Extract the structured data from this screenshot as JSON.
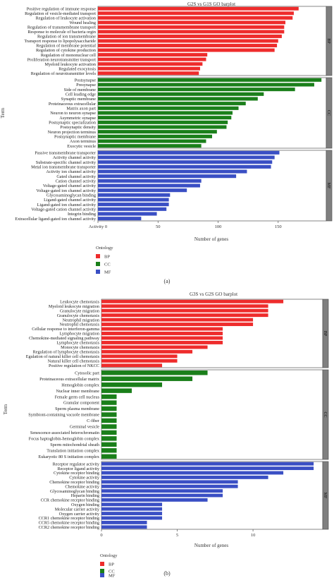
{
  "figure": {
    "panel_a_label": "(a)",
    "panel_b_label": "(b)"
  },
  "colors": {
    "BP": "#ee2c2c",
    "CC": "#1a7f1a",
    "MF": "#3a4fc4",
    "strip": "#7f7f7f"
  },
  "chart_data": [
    {
      "type": "bar",
      "orientation": "horizontal",
      "title": "G2S vs G1S GO barplot",
      "xlabel": "Number of genes",
      "ylabel": "Term",
      "xlim": [
        0,
        190
      ],
      "xticks": [
        0,
        50,
        100,
        150
      ],
      "xtick_labels": [
        "Activity 0",
        "50",
        "100",
        "150"
      ],
      "legend": {
        "title": "Ontology",
        "entries": [
          "BP",
          "CC",
          "MF"
        ],
        "position": "bottom-left"
      },
      "groups": [
        {
          "name": "BP",
          "strip_label": "BP",
          "color": "#ee2c2c",
          "categories": [
            "Positive regulation of immune response",
            "Regulation of vesicle-mediated transport",
            "Regulation of leukocyte activation",
            "Wound healing",
            "Regulation of transmembrane transport",
            "Response to molecule of bacteria orgin",
            "Regulation of ion transmembrane",
            "Transport response to lipopolysaccharide",
            "Regulation of membrane potential",
            "Regulation of cytokine production",
            "Regulation of mononuclear cell",
            "Proliferation neurotransmitter transport",
            "Myeloid leukocyte activation",
            "Regulated exocytosis",
            "Regulation of neurotransmitter levels"
          ],
          "values": [
            167,
            163,
            162,
            156,
            155,
            155,
            153,
            150,
            149,
            147,
            91,
            90,
            87,
            85,
            84
          ]
        },
        {
          "name": "CC",
          "strip_label": "CC",
          "color": "#1a7f1a",
          "categories": [
            "Postsynapse",
            "Presynapse",
            "Side of membrane",
            "Cell leading edge",
            "Synaptic membrane",
            "Proteinaceous extracellular",
            "Matrix axon part",
            "Neuron to neuron synapse",
            "Asymmetric synapse",
            "Postsynaptic specialization",
            "Postsynaptic density",
            "Neuron projection terminus",
            "Postsynaptic membrane",
            "Axon terminus",
            "Exocytic vesicle"
          ],
          "values": [
            186,
            180,
            164,
            138,
            133,
            123,
            117,
            112,
            111,
            108,
            107,
            99,
            95,
            90,
            86
          ]
        },
        {
          "name": "MF",
          "strip_label": "MF",
          "color": "#3a4fc4",
          "categories": [
            "Passive transmembrane transporter",
            "Activity channel activity",
            "Substrate-specific channel activity",
            "Metal ion transmembrane transporter",
            "Activity ion channel activity",
            "Gated channel activity",
            "Cation channel activity",
            "Voltage-gated channel activity",
            "Voltage-gated ion channel activity",
            "Glycosaminoglycan binding",
            "Ligand-gated channel activity",
            "Ligand-gated ion channel activity",
            "Voltage-gated cation channel activity",
            "Integrin binding",
            "Extracellular ligand-gated ion channel activity"
          ],
          "values": [
            151,
            147,
            145,
            144,
            124,
            115,
            86,
            85,
            74,
            60,
            59,
            59,
            57,
            49,
            36
          ]
        }
      ]
    },
    {
      "type": "bar",
      "orientation": "horizontal",
      "title": "G3S vs G2S GO barplot",
      "xlabel": "Number of genes",
      "ylabel": "Term",
      "xlim": [
        0,
        14.6
      ],
      "xticks": [
        0,
        5,
        10
      ],
      "xtick_labels": [
        "0",
        "5",
        "10"
      ],
      "legend": {
        "title": "Ontology",
        "entries": [
          "BP",
          "CC",
          "MF"
        ],
        "position": "bottom-left"
      },
      "groups": [
        {
          "name": "BP",
          "strip_label": "BP",
          "color": "#ee2c2c",
          "categories": [
            "Leukocyte chemotaxis",
            "Myeloid leukocyte migration",
            "Granulocyte migration",
            "Granulocyte chemotaxis",
            "Neutrophil migration",
            "Neutrophil chemotaxis",
            "Cellular response to interferon-gamma",
            "Lymphocyte migration",
            "Chemokine-mediated signaling pathway",
            "Lymphocyte chemotaxis",
            "Monocyte chemotaxis",
            "Regulation of lymphocyte chemotaxis",
            "Egulation of natural killer cell chemotaxis",
            "Natural killer cell chemotaxis",
            "Positive regulation of NKCC"
          ],
          "values": [
            12,
            11,
            11,
            11,
            10,
            10,
            8,
            8,
            8,
            8,
            7,
            6,
            5,
            5,
            4
          ]
        },
        {
          "name": "CC",
          "strip_label": "CC",
          "color": "#1a7f1a",
          "categories": [
            "Cytosolic part",
            "Proteinaceous extracellular matrix",
            "Hemoglobin complex",
            "Nuclear inner membrane",
            "Female germ cell nucleus",
            "Granular component",
            "Sperm plasma membrane",
            "Symbiont-containing vacuole membrane",
            "C-fiber",
            "Germinal vesicle",
            "Senescence-associated heterochromatin",
            "Focus haptoglobin-hemoglobin complex",
            "Sperm mitochondrial sheath",
            "Translation initiation complex",
            "Eukaryotic 80 S initiation complex"
          ],
          "values": [
            7,
            6,
            4,
            2,
            1,
            1,
            1,
            1,
            1,
            1,
            1,
            1,
            1,
            1,
            1
          ]
        },
        {
          "name": "MF",
          "strip_label": "MF",
          "color": "#3a4fc4",
          "categories": [
            "Receptor regulator activity",
            "Receptor ligand activity",
            "Cytokine receptor binding",
            "Cytokine activity",
            "Chemokine receptor binding",
            "Chemokine activity",
            "Glycosaminoglycan binding",
            "Heparin binding",
            "CCR chemokine receptor binding",
            "Oxygen binding",
            "Molecular carrier activity",
            "Oxygen carrier activity",
            "CCR1 chemokine receptor binding",
            "CCR5 chemokine receptor binding",
            "CCR2 chemokine receptor binding"
          ],
          "values": [
            14,
            14,
            12,
            11,
            9,
            9,
            8,
            8,
            7,
            4,
            4,
            4,
            4,
            3,
            3
          ]
        }
      ]
    }
  ]
}
